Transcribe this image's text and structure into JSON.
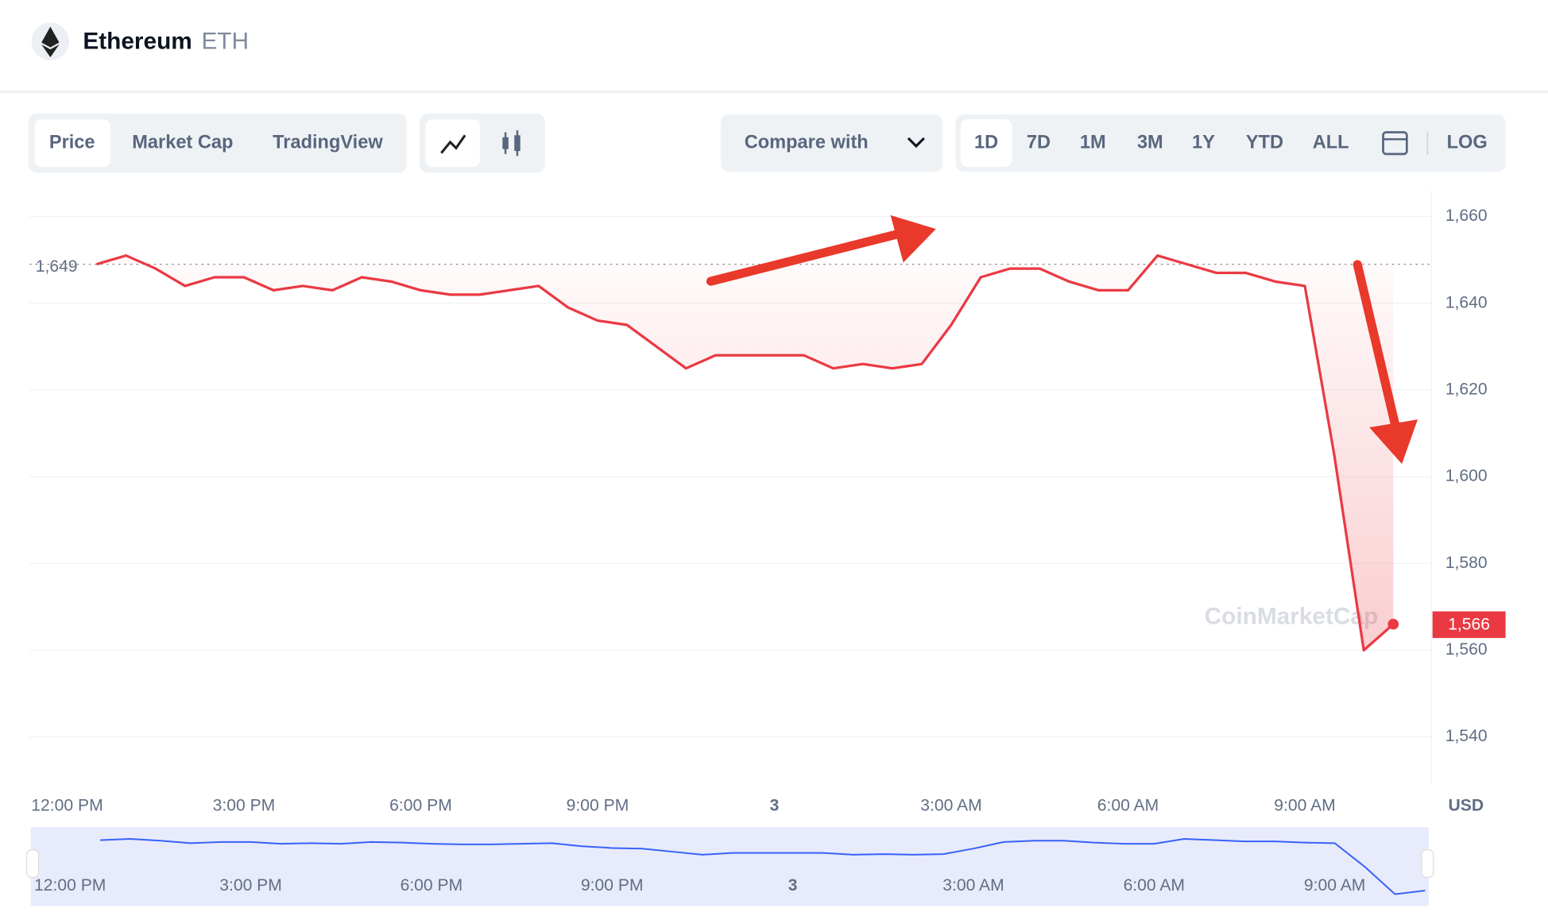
{
  "header": {
    "name": "Ethereum",
    "symbol": "ETH"
  },
  "toolbar": {
    "tabs": [
      "Price",
      "Market Cap",
      "TradingView"
    ],
    "compare": "Compare with",
    "ranges": [
      "1D",
      "7D",
      "1M",
      "3M",
      "1Y",
      "YTD",
      "ALL"
    ],
    "log": "LOG"
  },
  "watermark": "CoinMarketCap",
  "chart_data": {
    "type": "line",
    "categories": [
      "12:00 PM",
      null,
      null,
      null,
      null,
      null,
      "3:00 PM",
      null,
      null,
      null,
      null,
      null,
      "6:00 PM",
      null,
      null,
      null,
      null,
      null,
      "9:00 PM",
      null,
      null,
      null,
      null,
      null,
      "3",
      null,
      null,
      null,
      null,
      null,
      "3:00 AM",
      null,
      null,
      null,
      null,
      null,
      "6:00 AM",
      null,
      null,
      null,
      null,
      null,
      "9:00 AM",
      null,
      null,
      null
    ],
    "series": [
      {
        "name": "Price",
        "color": "#ea3943",
        "values": [
          null,
          1649,
          1651,
          1648,
          1644,
          1646,
          1646,
          1643,
          1644,
          1643,
          1646,
          1645,
          1643,
          1642,
          1642,
          1643,
          1644,
          1639,
          1636,
          1635,
          1630,
          1625,
          1628,
          1628,
          1628,
          1628,
          1625,
          1626,
          1625,
          1626,
          1635,
          1646,
          1648,
          1648,
          1645,
          1643,
          1643,
          1651,
          1649,
          1647,
          1647,
          1645,
          1644,
          1605,
          1560,
          1566
        ]
      }
    ],
    "reference": {
      "value": 1649,
      "label": "1,649"
    },
    "current_price": {
      "value": 1566,
      "label": "1,566"
    },
    "currency": "USD",
    "ylim": [
      1529,
      1666
    ],
    "yticks": [
      {
        "value": 1540,
        "label": "1,540"
      },
      {
        "value": 1560,
        "label": "1,560"
      },
      {
        "value": 1580,
        "label": "1,580"
      },
      {
        "value": 1600,
        "label": "1,600"
      },
      {
        "value": 1620,
        "label": "1,620"
      },
      {
        "value": 1640,
        "label": "1,640"
      },
      {
        "value": 1660,
        "label": "1,660"
      }
    ],
    "grid": true
  }
}
